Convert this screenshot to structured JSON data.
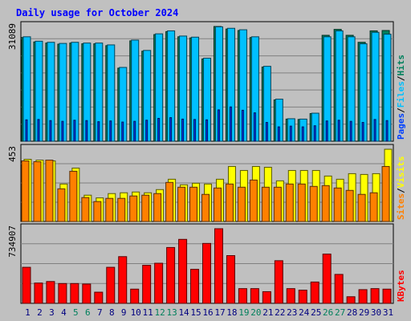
{
  "chart_data": {
    "type": "bar",
    "title": "Daily usage for October 2024",
    "colors": {
      "background": "#c0c0c0",
      "plot_background": "#c0c0c0",
      "title": "#0000ff",
      "hits": "#00805c",
      "files": "#00c0ff",
      "pages": "#0040ff",
      "visits": "#ffff00",
      "sites": "#ff8000",
      "kbytes": "#ff0000",
      "weekend_label": "#00805c",
      "weekday_label": "#000080"
    },
    "days": [
      "1",
      "2",
      "3",
      "4",
      "5",
      "6",
      "7",
      "8",
      "9",
      "10",
      "11",
      "12",
      "13",
      "14",
      "15",
      "16",
      "17",
      "18",
      "19",
      "20",
      "21",
      "22",
      "23",
      "24",
      "25",
      "26",
      "27",
      "28",
      "29",
      "30",
      "31"
    ],
    "weekend_days": [
      "5",
      "6",
      "12",
      "13",
      "19",
      "20",
      "26",
      "27"
    ],
    "panels": [
      {
        "name": "hits-files-pages",
        "max_label": "31089",
        "ylim": [
          0,
          31089
        ],
        "legend": [
          {
            "label": "Pages",
            "color_key": "pages"
          },
          {
            "label": "Files",
            "color_key": "files"
          },
          {
            "label": "Hits",
            "color_key": "hits"
          }
        ],
        "series": [
          {
            "name": "Hits",
            "color_key": "hits",
            "values": [
              28100,
              26900,
              26600,
              26300,
              26600,
              26400,
              26400,
              25900,
              19800,
              27200,
              24400,
              28900,
              29700,
              28300,
              28000,
              22300,
              31089,
              30400,
              30000,
              28100,
              20100,
              11200,
              6000,
              5900,
              7500,
              28700,
              30300,
              28700,
              26800,
              29900,
              30000
            ]
          },
          {
            "name": "Files",
            "color_key": "files",
            "values": [
              28300,
              27100,
              26800,
              26500,
              26800,
              26600,
              26600,
              26100,
              20000,
              27400,
              24600,
              29100,
              29900,
              28500,
              28200,
              22500,
              31000,
              30600,
              30200,
              28300,
              20300,
              11400,
              6100,
              6000,
              7600,
              28300,
              29900,
              28300,
              26400,
              29500,
              29000
            ]
          },
          {
            "name": "Pages",
            "color_key": "pages",
            "values": [
              5800,
              5900,
              5600,
              5400,
              5700,
              5600,
              5300,
              5500,
              5200,
              5400,
              5700,
              6200,
              6400,
              6000,
              5900,
              5800,
              8500,
              9300,
              8400,
              7700,
              5100,
              3900,
              4100,
              3900,
              4200,
              5500,
              5700,
              5400,
              5100,
              5900,
              5600
            ]
          }
        ]
      },
      {
        "name": "visits-sites",
        "max_label": "453",
        "ylim": [
          0,
          453
        ],
        "legend": [
          {
            "label": "Sites",
            "color_key": "sites"
          },
          {
            "label": "Visits",
            "color_key": "visits"
          }
        ],
        "series": [
          {
            "name": "Visits",
            "color_key": "visits",
            "values": [
              390,
              385,
              380,
              235,
              335,
              165,
              148,
              175,
              180,
              185,
              180,
              200,
              265,
              230,
              240,
              235,
              265,
              345,
              320,
              345,
              340,
              255,
              320,
              320,
              320,
              285,
              265,
              300,
              295,
              300,
              453
            ]
          },
          {
            "name": "Sites",
            "color_key": "sites",
            "values": [
              380,
              375,
              385,
              205,
              315,
              150,
              125,
              145,
              145,
              160,
              165,
              175,
              245,
              215,
              215,
              170,
              210,
              235,
              215,
              260,
              215,
              215,
              235,
              235,
              220,
              225,
              210,
              195,
              170,
              180,
              345
            ]
          }
        ]
      },
      {
        "name": "kbytes",
        "max_label": "734907",
        "ylim": [
          0,
          734907
        ],
        "legend": [
          {
            "label": "KBytes",
            "color_key": "kbytes"
          }
        ],
        "series": [
          {
            "name": "KBytes",
            "color_key": "kbytes",
            "values": [
              355000,
              200000,
              215000,
              195000,
              195000,
              190000,
              110000,
              355000,
              460000,
              140000,
              375000,
              395000,
              550000,
              630000,
              335000,
              590000,
              734907,
              470000,
              145000,
              145000,
              115000,
              420000,
              145000,
              130000,
              210000,
              485000,
              285000,
              65000,
              135000,
              145000,
              140000
            ]
          }
        ]
      }
    ]
  }
}
